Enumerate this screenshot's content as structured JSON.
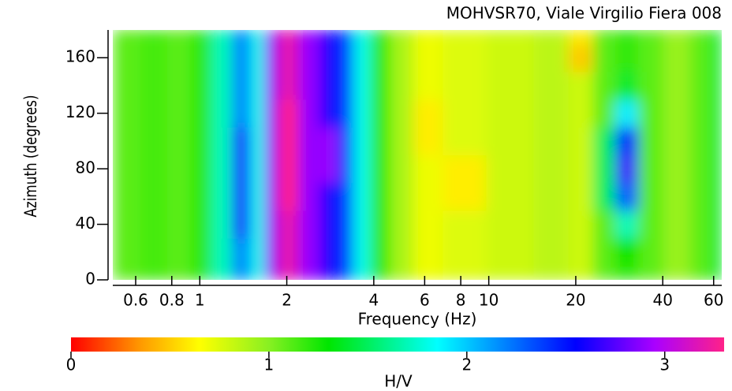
{
  "chart_data": {
    "type": "heatmap",
    "title": "MOHVSR70, Viale Virgilio Fiera 008",
    "x_label": "Frequency (Hz)",
    "y_label": "Azimuth (degrees)",
    "colorbar_label": "H/V",
    "x_log": true,
    "x": [
      0.55,
      0.7,
      0.85,
      1.0,
      1.2,
      1.4,
      1.6,
      1.75,
      2.0,
      2.4,
      2.8,
      3.2,
      3.6,
      4.2,
      5,
      6,
      8,
      12,
      17,
      21,
      25,
      30,
      36,
      45,
      55,
      62
    ],
    "y": [
      0,
      20,
      40,
      60,
      80,
      100,
      120,
      140,
      160,
      180
    ],
    "z": [
      [
        1.1,
        1.15,
        1.1,
        1.2,
        1.7,
        2.2,
        1.8,
        2.9,
        3.2,
        2.9,
        2.6,
        2.4,
        1.8,
        1.2,
        0.9,
        0.7,
        0.75,
        0.8,
        0.85,
        0.8,
        1.1,
        1.2,
        1.1,
        0.95,
        1.1,
        1.4
      ],
      [
        1.1,
        1.15,
        1.1,
        1.2,
        1.7,
        2.2,
        1.8,
        2.9,
        3.2,
        2.9,
        2.6,
        2.4,
        1.8,
        1.2,
        0.9,
        0.7,
        0.75,
        0.8,
        0.85,
        0.8,
        1.1,
        1.3,
        1.1,
        0.95,
        1.1,
        1.4
      ],
      [
        1.1,
        1.15,
        1.1,
        1.2,
        1.7,
        2.6,
        1.8,
        2.9,
        3.2,
        2.9,
        2.6,
        2.4,
        1.8,
        1.2,
        0.9,
        0.7,
        0.75,
        0.8,
        0.85,
        0.8,
        1.1,
        1.7,
        1.1,
        0.95,
        1.1,
        1.4
      ],
      [
        1.1,
        1.15,
        1.1,
        1.2,
        1.7,
        2.6,
        1.8,
        2.9,
        3.3,
        2.9,
        2.6,
        2.4,
        1.8,
        1.2,
        0.9,
        0.7,
        0.6,
        0.8,
        0.85,
        0.8,
        1.5,
        2.3,
        1.1,
        0.95,
        1.1,
        1.4
      ],
      [
        1.1,
        1.15,
        1.1,
        1.2,
        1.7,
        2.6,
        1.8,
        2.9,
        3.3,
        2.9,
        2.9,
        2.4,
        1.8,
        1.2,
        0.9,
        0.7,
        0.6,
        0.8,
        0.85,
        0.8,
        1.5,
        2.7,
        1.1,
        0.95,
        1.1,
        1.4
      ],
      [
        1.1,
        1.15,
        1.1,
        1.2,
        1.7,
        2.6,
        1.8,
        2.9,
        3.3,
        2.9,
        2.9,
        2.4,
        1.8,
        1.2,
        0.9,
        0.6,
        0.75,
        0.8,
        0.85,
        0.8,
        1.5,
        2.5,
        1.1,
        0.95,
        1.1,
        1.4
      ],
      [
        1.1,
        1.15,
        1.1,
        1.2,
        1.7,
        2.2,
        1.8,
        2.9,
        3.3,
        2.9,
        2.6,
        2.4,
        1.8,
        1.2,
        0.9,
        0.6,
        0.75,
        0.8,
        0.85,
        0.8,
        1.1,
        1.9,
        1.1,
        0.95,
        1.1,
        1.4
      ],
      [
        1.1,
        1.15,
        1.1,
        1.2,
        1.7,
        2.2,
        1.8,
        2.9,
        3.2,
        2.9,
        2.6,
        2.4,
        1.8,
        1.2,
        0.9,
        0.7,
        0.75,
        0.8,
        0.85,
        0.8,
        1.1,
        1.4,
        1.1,
        0.95,
        1.1,
        1.4
      ],
      [
        1.1,
        1.15,
        1.1,
        1.2,
        1.7,
        2.2,
        1.8,
        2.9,
        3.2,
        2.9,
        2.6,
        2.4,
        1.8,
        1.2,
        0.9,
        0.7,
        0.75,
        0.8,
        0.85,
        0.5,
        1.1,
        1.2,
        1.1,
        0.95,
        1.1,
        1.4
      ],
      [
        1.1,
        1.15,
        1.1,
        1.2,
        1.7,
        2.2,
        1.8,
        2.9,
        3.2,
        2.9,
        2.6,
        2.4,
        1.8,
        1.2,
        0.9,
        0.7,
        0.75,
        0.8,
        0.85,
        0.6,
        1.1,
        1.2,
        1.1,
        0.95,
        1.1,
        1.4
      ]
    ],
    "xlim": [
      0.5,
      64
    ],
    "ylim": [
      0,
      180
    ],
    "xticks": [
      0.6,
      0.8,
      1,
      2,
      4,
      6,
      8,
      10,
      20,
      40,
      60
    ],
    "yticks": [
      0,
      40,
      80,
      120,
      160
    ],
    "clim": [
      0,
      3.3
    ],
    "cticks": [
      0,
      1,
      2,
      3
    ],
    "colorscale": [
      [
        0,
        "#ff0000"
      ],
      [
        0.35,
        "#ff9900"
      ],
      [
        0.65,
        "#ffff00"
      ],
      [
        1.0,
        "#88f022"
      ],
      [
        1.3,
        "#00e600"
      ],
      [
        1.85,
        "#00ffff"
      ],
      [
        2.55,
        "#0000ff"
      ],
      [
        2.95,
        "#aa00ff"
      ],
      [
        3.3,
        "#ff2288"
      ]
    ]
  }
}
